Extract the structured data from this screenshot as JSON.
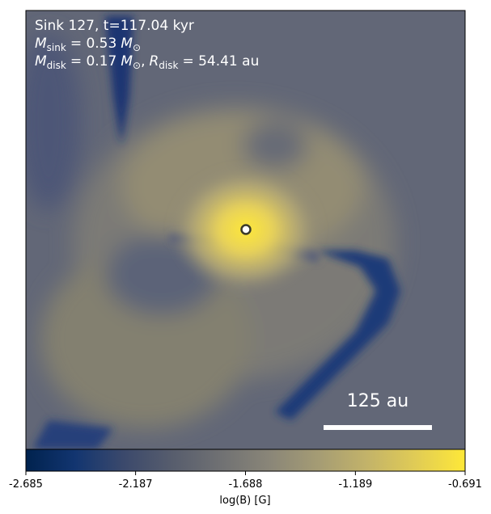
{
  "chart_data": {
    "type": "heatmap",
    "annotations": [
      [
        "Sink 127, t=117.04 kyr"
      ],
      [
        "M",
        "sink",
        "= 0.53",
        "M",
        "⊙"
      ],
      [
        "M",
        "disk",
        "= 0.17",
        "M",
        "⊙",
        ",",
        "R",
        "disk",
        "= 54.41 au"
      ]
    ],
    "scale_bar_label": "125 au",
    "colorbar": {
      "label": "log(B) [G]",
      "lim": [
        -2.685,
        -0.691
      ],
      "ticks": [
        -2.685,
        -2.187,
        -1.688,
        -1.189,
        -0.691
      ],
      "colors": [
        "#00224e",
        "#123570",
        "#3b496c",
        "#575d6d",
        "#707173",
        "#8a8678",
        "#a59c74",
        "#c3b369",
        "#e1cc55",
        "#fee838"
      ]
    }
  }
}
